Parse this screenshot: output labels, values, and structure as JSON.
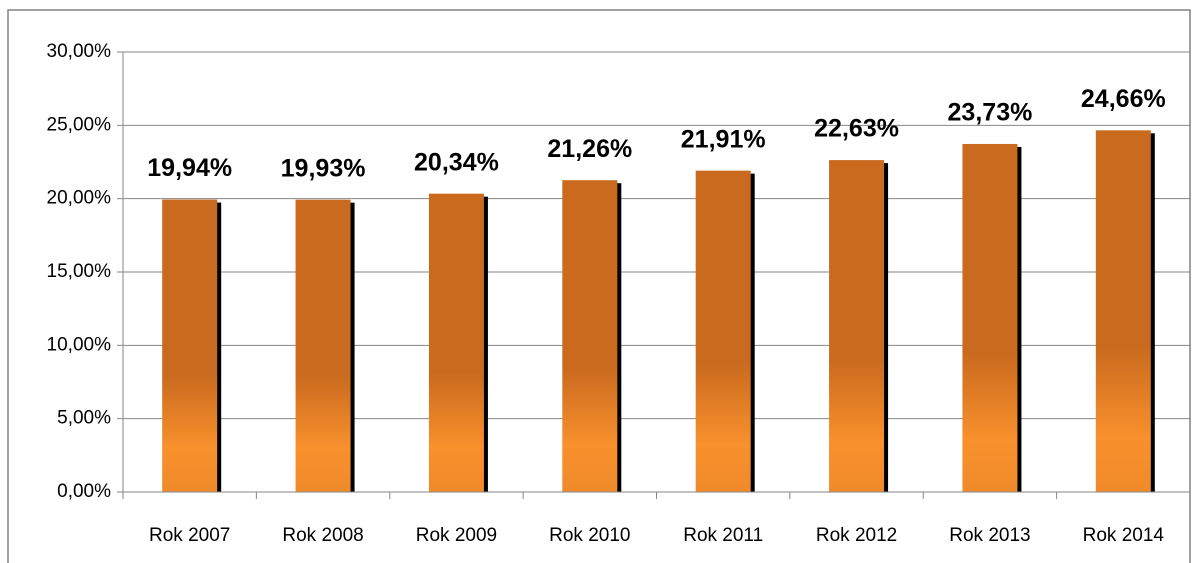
{
  "chart_data": {
    "type": "bar",
    "categories": [
      "Rok 2007",
      "Rok 2008",
      "Rok 2009",
      "Rok 2010",
      "Rok 2011",
      "Rok 2012",
      "Rok 2013",
      "Rok 2014"
    ],
    "values": [
      19.94,
      19.93,
      20.34,
      21.26,
      21.91,
      22.63,
      23.73,
      24.66
    ],
    "value_labels": [
      "19,94%",
      "19,93%",
      "20,34%",
      "21,26%",
      "21,91%",
      "22,63%",
      "23,73%",
      "24,66%"
    ],
    "color": "#c96a1e",
    "ylim": [
      0,
      30
    ],
    "yticks": [
      {
        "value": 0,
        "label": "0,00%"
      },
      {
        "value": 5,
        "label": "5,00%"
      },
      {
        "value": 10,
        "label": "10,00%"
      },
      {
        "value": 15,
        "label": "15,00%"
      },
      {
        "value": 20,
        "label": "20,00%"
      },
      {
        "value": 25,
        "label": "25,00%"
      },
      {
        "value": 30,
        "label": "30,00%"
      }
    ],
    "grid": true
  }
}
